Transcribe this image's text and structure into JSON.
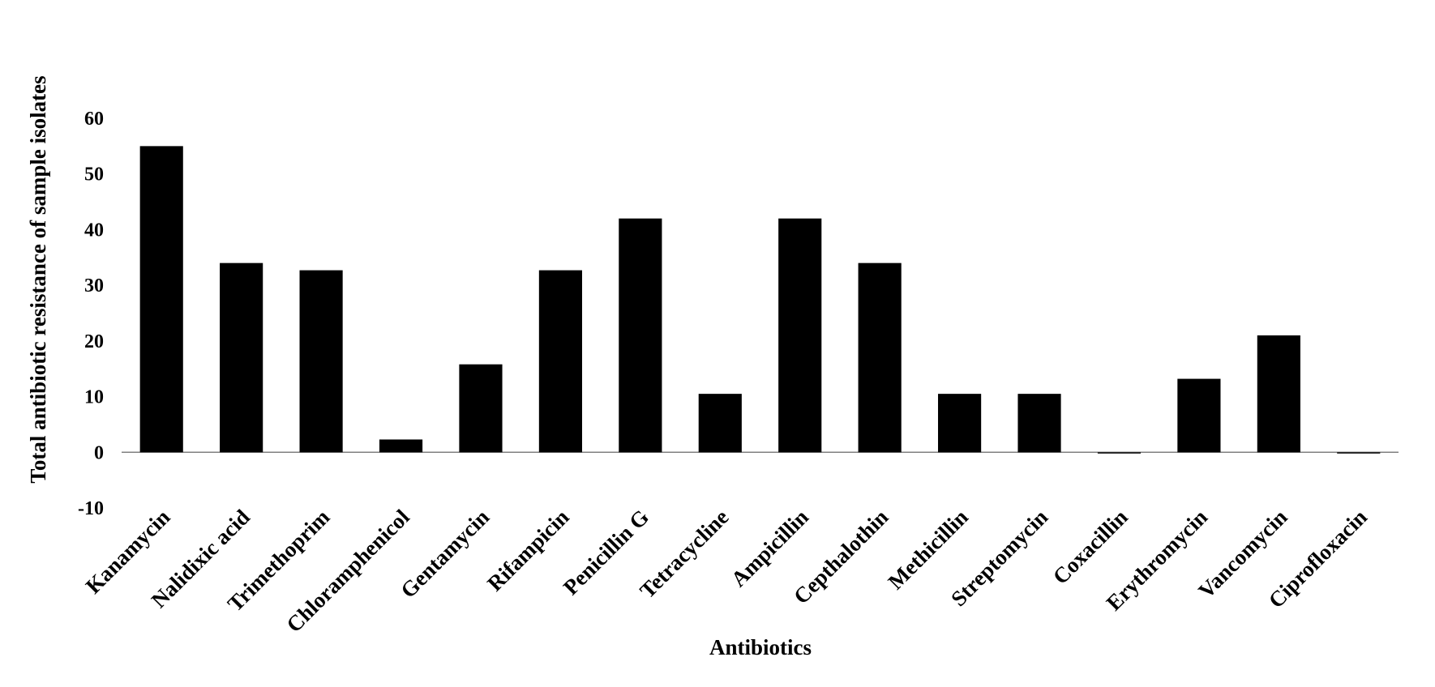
{
  "chart_data": {
    "type": "bar",
    "xlabel": "Antibiotics",
    "ylabel": "Total antibiotic resistance  of  sample isolates",
    "ylim": [
      -10,
      60
    ],
    "yticks": [
      -10,
      0,
      10,
      20,
      30,
      40,
      50,
      60
    ],
    "grid": false,
    "legend": "none",
    "categories": [
      "Kanamycin",
      "Nalidixic acid",
      "Trimethoprim",
      "Chloramphenicol",
      "Gentamycin",
      "Rifampicin",
      "Penicillin G",
      "Tetracycline",
      "Ampicillin",
      "Cepthalothin",
      "Methicillin",
      "Streptomycin",
      "Coxacillin",
      "Erythromycin",
      "Vancomycin",
      "Ciprofloxacin"
    ],
    "values": [
      55,
      34,
      32.7,
      2.3,
      15.8,
      32.7,
      42,
      10.5,
      42,
      34,
      10.5,
      10.5,
      0,
      13.2,
      21,
      0
    ],
    "colors": {
      "bar": "#000000",
      "zero_line": "#7f7f7f"
    }
  }
}
